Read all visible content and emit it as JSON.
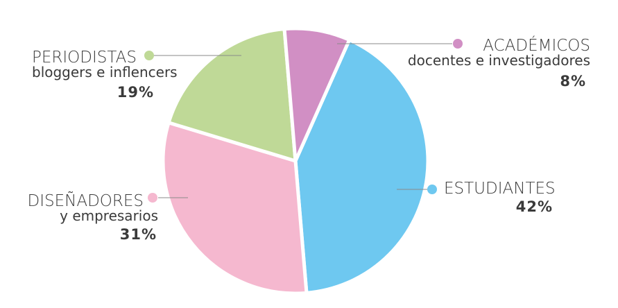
{
  "chart_data": {
    "type": "pie",
    "slices": [
      {
        "key": "estudiantes",
        "label": "ESTUDIANTES",
        "sublabel": "",
        "percent_label": "42%",
        "value": 42,
        "color": "#6ec8f0"
      },
      {
        "key": "disenadores",
        "label": "DISEÑADORES",
        "sublabel": "y empresarios",
        "percent_label": "31%",
        "value": 31,
        "color": "#f5b8cf"
      },
      {
        "key": "periodistas",
        "label": "PERIODISTAS",
        "sublabel": "bloggers e inflencers",
        "percent_label": "19%",
        "value": 19,
        "color": "#bfd997"
      },
      {
        "key": "academicos",
        "label": "ACADÉMICOS",
        "sublabel": "docentes e investigadores",
        "percent_label": "8%",
        "value": 8,
        "color": "#d18fc4"
      }
    ]
  }
}
